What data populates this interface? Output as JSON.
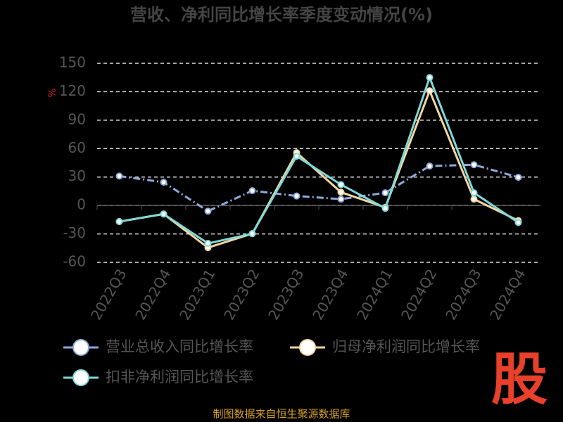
{
  "chart_data": {
    "type": "line",
    "title": "营收、净利同比增长率季度变动情况(%)",
    "y_unit": "%",
    "categories": [
      "2022Q3",
      "2022Q4",
      "2023Q1",
      "2023Q2",
      "2023Q3",
      "2023Q4",
      "2024Q1",
      "2024Q2",
      "2024Q3",
      "2024Q4"
    ],
    "series": [
      {
        "name": "营业总收入同比增长率",
        "color": "#8fa8d8",
        "dashed": true,
        "values": [
          31,
          24.5,
          -6,
          15.6,
          10,
          6.7,
          13.4,
          41.6,
          43,
          29.7
        ]
      },
      {
        "name": "归母净利润同比增长率",
        "color": "#f5d5a0",
        "dashed": false,
        "values": [
          -17,
          -9,
          -44.5,
          -29.7,
          55.7,
          14,
          -2,
          121,
          6.7,
          -16
        ]
      },
      {
        "name": "扣非净利润同比增长率",
        "color": "#7fd8d8",
        "dashed": false,
        "values": [
          -17,
          -9,
          -40,
          -29.7,
          52,
          22,
          -3,
          135,
          13.4,
          -18
        ]
      }
    ],
    "ylim": [
      -60,
      150
    ],
    "yticks": [
      -60,
      -30,
      0,
      30,
      60,
      90,
      120,
      150
    ],
    "grid": true,
    "source": "制图数据来自恒生聚源数据库",
    "watermark": "股"
  }
}
